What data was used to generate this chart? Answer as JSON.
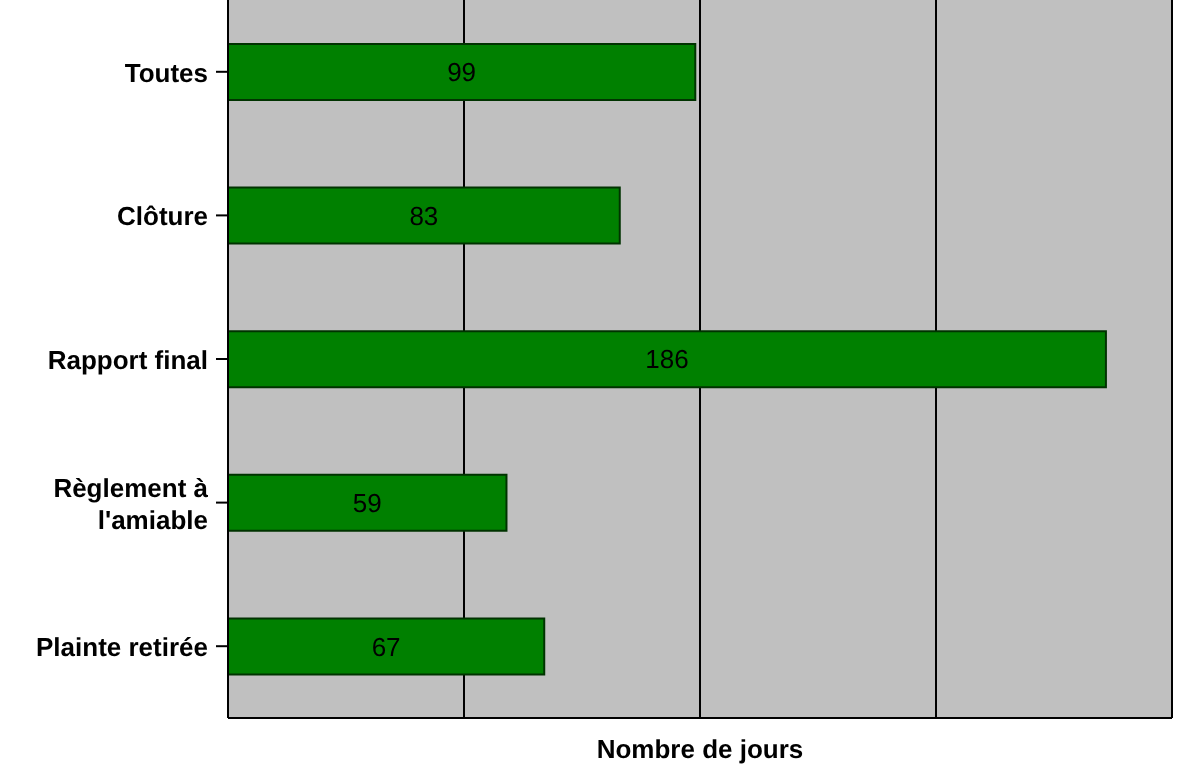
{
  "chart_data": {
    "type": "bar",
    "orientation": "horizontal",
    "xlabel": "Nombre de jours",
    "categories": [
      "Toutes",
      "Clôture",
      "Rapport final",
      "Règlement à l'amiable",
      "Plainte retirée"
    ],
    "values": [
      99,
      83,
      186,
      59,
      67
    ],
    "color": "#008000",
    "xlim": [
      0,
      200
    ],
    "xticks": [
      {
        "value": 0,
        "label": null
      },
      {
        "value": 50,
        "label": null
      },
      {
        "value": 100,
        "label": null
      },
      {
        "value": 150,
        "label": null
      },
      {
        "value": 200,
        "label": null
      }
    ],
    "grid": "x",
    "data_labels": true,
    "tick_labels": "y"
  }
}
